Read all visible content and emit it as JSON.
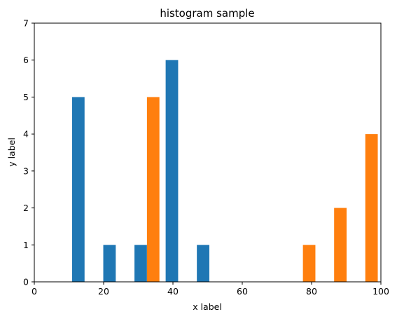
{
  "chart_data": {
    "type": "bar",
    "title": "histogram sample",
    "xlabel": "x label",
    "ylabel": "y label",
    "xlim": [
      0,
      100
    ],
    "ylim": [
      0,
      7
    ],
    "xticks": [
      0,
      20,
      40,
      60,
      80,
      100
    ],
    "yticks": [
      0,
      1,
      2,
      3,
      4,
      5,
      6,
      7
    ],
    "bin_edges": [
      10,
      19,
      28,
      37,
      46,
      55,
      64,
      73,
      82,
      91,
      100
    ],
    "series": [
      {
        "color": "#1f77b4",
        "counts": [
          5,
          1,
          1,
          6,
          1,
          0,
          0,
          0,
          0,
          0
        ]
      },
      {
        "color": "#ff7f0e",
        "counts": [
          0,
          0,
          5,
          0,
          0,
          0,
          0,
          1,
          2,
          4
        ]
      }
    ],
    "grid": false,
    "legend": false
  }
}
